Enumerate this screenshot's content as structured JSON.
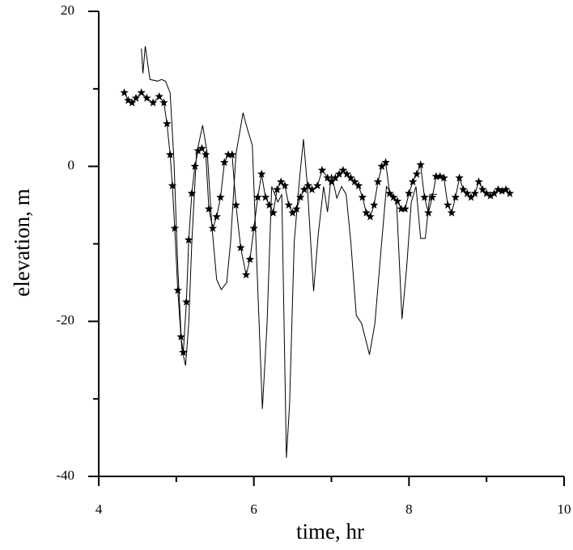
{
  "chart_data": {
    "type": "line",
    "xlabel": "time, hr",
    "ylabel": "elevation, m",
    "xlim": [
      4,
      10
    ],
    "xticks": [
      4,
      6,
      8,
      10
    ],
    "xminorticks": [
      5,
      7,
      9
    ],
    "ylim": [
      -40,
      20
    ],
    "yticks": [
      -40,
      -20,
      0,
      20
    ],
    "yminorticks": [
      -30,
      -10,
      10
    ],
    "series": [
      {
        "color": "#000000",
        "marker": "none",
        "x": [
          4.55,
          4.57,
          4.6,
          4.66,
          4.76,
          4.81,
          4.86,
          4.92,
          4.97,
          5.02,
          5.07,
          5.12,
          5.16,
          5.2,
          5.26,
          5.34,
          5.4,
          5.46,
          5.52,
          5.58,
          5.65,
          5.7,
          5.77,
          5.86,
          5.92,
          5.98,
          6.04,
          6.11,
          6.17,
          6.23,
          6.31,
          6.36,
          6.42,
          6.46,
          6.52,
          6.59,
          6.64,
          6.69,
          6.77,
          6.83,
          6.9,
          6.95,
          7.0,
          7.07,
          7.13,
          7.19,
          7.25,
          7.32,
          7.39,
          7.49,
          7.56,
          7.63,
          7.71,
          7.78,
          7.84,
          7.91,
          7.97,
          8.03,
          8.09,
          8.15,
          8.21,
          8.27,
          8.36
        ],
        "values": [
          15.2,
          12,
          15.5,
          11.2,
          11,
          11.2,
          11,
          9.5,
          0.6,
          -13,
          -23.4,
          -25.7,
          -20.3,
          -9.8,
          1.6,
          5.3,
          1.6,
          -7.8,
          -14.6,
          -15.9,
          -15,
          -9.8,
          1.6,
          6.9,
          4.7,
          2.7,
          -13,
          -31.3,
          -20.3,
          -2.6,
          -4.6,
          -3.6,
          -37.6,
          -30.7,
          -9.8,
          -1.5,
          3.5,
          -2.6,
          -16.1,
          -8.8,
          -2.6,
          -5.9,
          -1,
          -4.1,
          -2.6,
          -3.6,
          -9.8,
          -19.2,
          -20.3,
          -24.3,
          -20.3,
          -11.9,
          -2.6,
          -3.6,
          -4.6,
          -19.7,
          -13,
          -4.6,
          -2.6,
          -9.3,
          -9.3,
          -3.6,
          -3.6
        ]
      },
      {
        "color": "#000000",
        "marker": "star",
        "x": [
          4.33,
          4.38,
          4.43,
          4.48,
          4.55,
          4.62,
          4.7,
          4.78,
          4.84,
          4.88,
          4.92,
          4.95,
          4.98,
          5.02,
          5.06,
          5.09,
          5.13,
          5.16,
          5.2,
          5.24,
          5.28,
          5.33,
          5.38,
          5.42,
          5.47,
          5.52,
          5.57,
          5.62,
          5.67,
          5.72,
          5.77,
          5.83,
          5.9,
          5.95,
          6.0,
          6.05,
          6.1,
          6.15,
          6.2,
          6.25,
          6.3,
          6.35,
          6.4,
          6.45,
          6.5,
          6.55,
          6.6,
          6.65,
          6.7,
          6.75,
          6.82,
          6.88,
          6.95,
          7.0,
          7.05,
          7.1,
          7.15,
          7.2,
          7.25,
          7.3,
          7.35,
          7.4,
          7.45,
          7.5,
          7.55,
          7.6,
          7.65,
          7.7,
          7.75,
          7.8,
          7.85,
          7.9,
          7.95,
          8.0,
          8.05,
          8.1,
          8.15,
          8.2,
          8.25,
          8.3,
          8.35,
          8.4,
          8.45,
          8.5,
          8.55,
          8.6,
          8.65,
          8.7,
          8.75,
          8.8,
          8.85,
          8.9,
          8.95,
          9.0,
          9.05,
          9.1,
          9.15,
          9.2,
          9.25,
          9.3
        ],
        "values": [
          9.5,
          8.5,
          8.2,
          8.8,
          9.5,
          8.8,
          8.2,
          9,
          8.2,
          5.5,
          1.5,
          -2.5,
          -8,
          -16,
          -22,
          -24,
          -17.5,
          -9.5,
          -3.5,
          0,
          2,
          2.3,
          1.5,
          -5.5,
          -8,
          -6.5,
          -4,
          0.5,
          1.5,
          1.5,
          -5,
          -10.5,
          -14,
          -12,
          -8,
          -4,
          -1,
          -4,
          -5,
          -6,
          -3,
          -2,
          -2.5,
          -5,
          -6,
          -5.5,
          -4,
          -3,
          -2.5,
          -3,
          -2.5,
          -0.5,
          -1.5,
          -2,
          -1.5,
          -1,
          -0.5,
          -1,
          -1.5,
          -2,
          -2.5,
          -4,
          -6,
          -6.5,
          -5,
          -2,
          0,
          0.5,
          -3.5,
          -4,
          -4.5,
          -5.5,
          -5.5,
          -3.5,
          -2,
          -1,
          0.2,
          -4,
          -6,
          -4,
          -1.3,
          -1.3,
          -1.5,
          -5,
          -6,
          -4,
          -1.5,
          -3,
          -3.5,
          -4,
          -3.5,
          -2,
          -3,
          -3.5,
          -3.8,
          -3.5,
          -3,
          -3.2,
          -3,
          -3.5
        ]
      }
    ]
  }
}
